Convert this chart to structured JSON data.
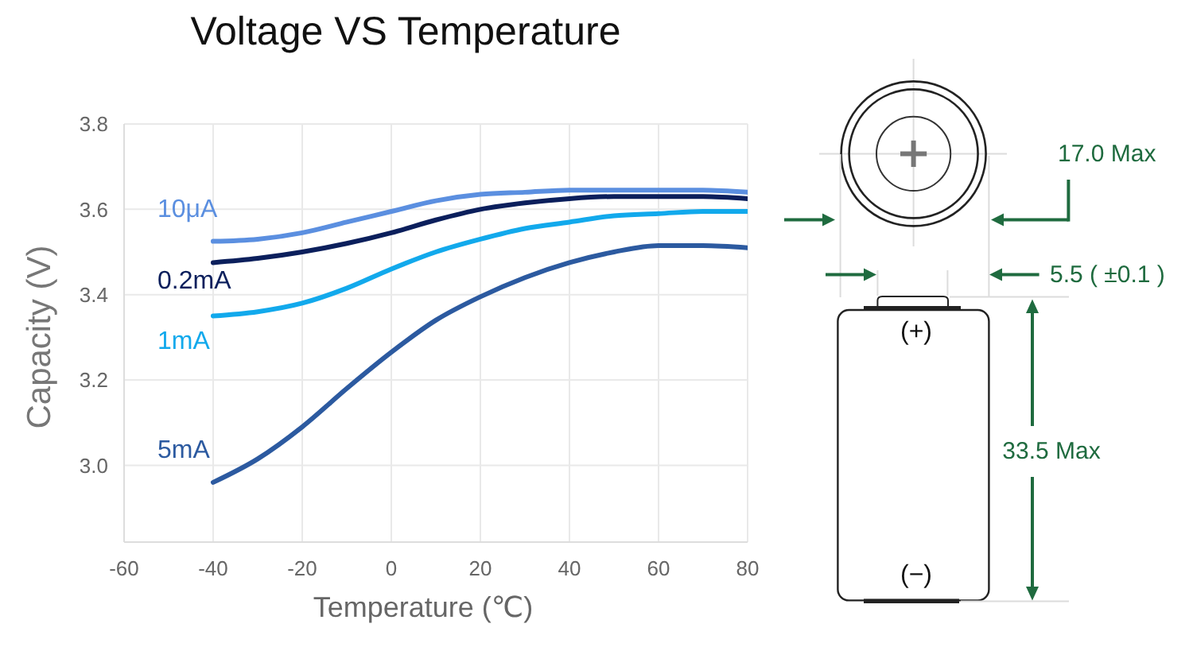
{
  "chart_data": {
    "type": "line",
    "title": "Voltage VS Temperature",
    "xlabel": "Temperature (℃)",
    "ylabel": "Capacity (V)",
    "x": [
      -40,
      -30,
      -20,
      -10,
      0,
      10,
      20,
      30,
      40,
      50,
      60,
      70,
      80
    ],
    "series": [
      {
        "name": "10μA",
        "color": "#5b8fe0",
        "values": [
          3.525,
          3.53,
          3.545,
          3.57,
          3.595,
          3.62,
          3.635,
          3.64,
          3.645,
          3.645,
          3.645,
          3.645,
          3.64
        ]
      },
      {
        "name": "0.2mA",
        "color": "#0b1f5c",
        "values": [
          3.475,
          3.485,
          3.5,
          3.52,
          3.545,
          3.575,
          3.6,
          3.615,
          3.625,
          3.63,
          3.63,
          3.63,
          3.625
        ]
      },
      {
        "name": "1mA",
        "color": "#12a9ec",
        "values": [
          3.35,
          3.36,
          3.38,
          3.415,
          3.46,
          3.5,
          3.53,
          3.555,
          3.57,
          3.585,
          3.59,
          3.595,
          3.595
        ]
      },
      {
        "name": "5mA",
        "color": "#2c5aa0",
        "values": [
          2.96,
          3.015,
          3.09,
          3.18,
          3.265,
          3.34,
          3.395,
          3.44,
          3.475,
          3.5,
          3.515,
          3.515,
          3.51
        ]
      }
    ],
    "xlim": [
      -60,
      80
    ],
    "xticks": [
      -60,
      -40,
      -20,
      0,
      20,
      40,
      60,
      80
    ],
    "ylim": [
      2.82,
      3.8
    ],
    "yticks": [
      {
        "value": 3,
        "label": "3.0"
      },
      3.2,
      3.4,
      3.6,
      3.8
    ],
    "grid": true,
    "marker": "none",
    "annotations": [
      "17.0 Max",
      "5.5 ( ±0.1 )",
      "33.5 Max",
      "(+)",
      "(−)"
    ]
  }
}
